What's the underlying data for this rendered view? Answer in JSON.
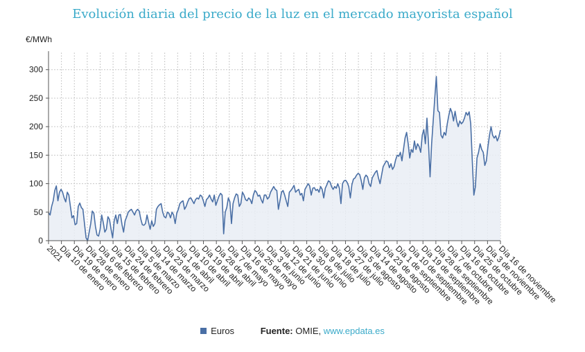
{
  "chart_data": {
    "type": "area",
    "title": "Evolución diaria del precio de la luz en el mercado mayorista español",
    "ylabel": "€/MWh",
    "ylim": [
      0,
      330
    ],
    "yticks": [
      0,
      50,
      100,
      150,
      200,
      250,
      300
    ],
    "grid": true,
    "colors": {
      "line": "#4a6fa5",
      "fill": "#e9edf4",
      "title": "#3aaac9"
    },
    "x_labels": [
      "2021",
      "Día 10 de enero",
      "Día 19 de enero",
      "Día 28 de enero",
      "Día 6 de febrero",
      "Día 15 de febrero",
      "Día 24 de febrero",
      "Día 5 de marzo",
      "Día 14 de marzo",
      "Día 23 de marzo",
      "Día 1 de abril",
      "Día 10 de abril",
      "Día 19 de abril",
      "Día 28 de abril",
      "Día 7 de mayo",
      "Día 16 de mayo",
      "Día 25 de mayo",
      "Día 3 de junio",
      "Día 12 de junio",
      "Día 21 de junio",
      "Día 30 de junio",
      "Día 9 de julio",
      "Día 18 de julio",
      "Día 27 de julio",
      "Día 5 de agosto",
      "Día 14 de agosto",
      "Día 23 de agosto",
      "Día 1 de septiembre",
      "Día 10 de septiembre",
      "Día 19 de septiembre",
      "Día 28 de septiembre",
      "Día 7 de octubre",
      "Día 16 de octubre",
      "Día 25 de octubre",
      "Día 3 de noviembre",
      "Día 16 de noviembre"
    ],
    "series": [
      {
        "name": "Euros",
        "values": [
          49,
          45,
          60,
          70,
          88,
          96,
          70,
          85,
          90,
          85,
          75,
          68,
          85,
          80,
          60,
          40,
          44,
          28,
          30,
          60,
          66,
          58,
          55,
          30,
          5,
          0,
          15,
          30,
          52,
          48,
          25,
          10,
          8,
          20,
          45,
          32,
          15,
          20,
          42,
          37,
          20,
          5,
          35,
          45,
          30,
          45,
          46,
          28,
          15,
          35,
          42,
          50,
          53,
          55,
          50,
          45,
          52,
          55,
          52,
          38,
          28,
          27,
          30,
          45,
          32,
          20,
          35,
          25,
          30,
          55,
          60,
          63,
          65,
          50,
          42,
          40,
          50,
          48,
          40,
          50,
          45,
          30,
          48,
          55,
          65,
          68,
          70,
          55,
          60,
          68,
          74,
          75,
          70,
          65,
          72,
          75,
          73,
          80,
          78,
          70,
          60,
          72,
          75,
          80,
          73,
          68,
          80,
          62,
          70,
          78,
          83,
          80,
          12,
          50,
          58,
          75,
          68,
          30,
          65,
          75,
          82,
          80,
          60,
          65,
          85,
          80,
          72,
          70,
          75,
          72,
          65,
          80,
          88,
          85,
          78,
          80,
          72,
          66,
          80,
          80,
          73,
          76,
          85,
          90,
          95,
          90,
          88,
          55,
          70,
          85,
          88,
          80,
          70,
          60,
          85,
          88,
          92,
          97,
          85,
          88,
          90,
          80,
          83,
          70,
          90,
          95,
          100,
          96,
          80,
          92,
          93,
          88,
          90,
          85,
          95,
          90,
          75,
          92,
          98,
          105,
          103,
          95,
          90,
          95,
          92,
          100,
          92,
          65,
          100,
          105,
          106,
          102,
          95,
          75,
          98,
          108,
          110,
          115,
          118,
          116,
          105,
          90,
          110,
          115,
          112,
          100,
          95,
          110,
          115,
          120,
          123,
          110,
          100,
          115,
          130,
          135,
          140,
          138,
          128,
          135,
          125,
          130,
          142,
          150,
          148,
          155,
          140,
          160,
          180,
          190,
          170,
          145,
          160,
          155,
          175,
          160,
          170,
          165,
          155,
          185,
          195,
          170,
          215,
          170,
          112,
          170,
          210,
          250,
          288,
          228,
          225,
          185,
          180,
          190,
          185,
          205,
          220,
          232,
          225,
          210,
          227,
          210,
          200,
          210,
          205,
          208,
          215,
          225,
          220,
          226,
          205,
          140,
          80,
          95,
          145,
          155,
          170,
          160,
          155,
          132,
          140,
          165,
          185,
          200,
          185,
          180,
          184,
          175,
          182,
          194
        ]
      }
    ]
  },
  "legend": {
    "series_label": "Euros",
    "source_label": "Fuente:",
    "source_text": "OMIE,",
    "source_link": "www.epdata.es"
  }
}
